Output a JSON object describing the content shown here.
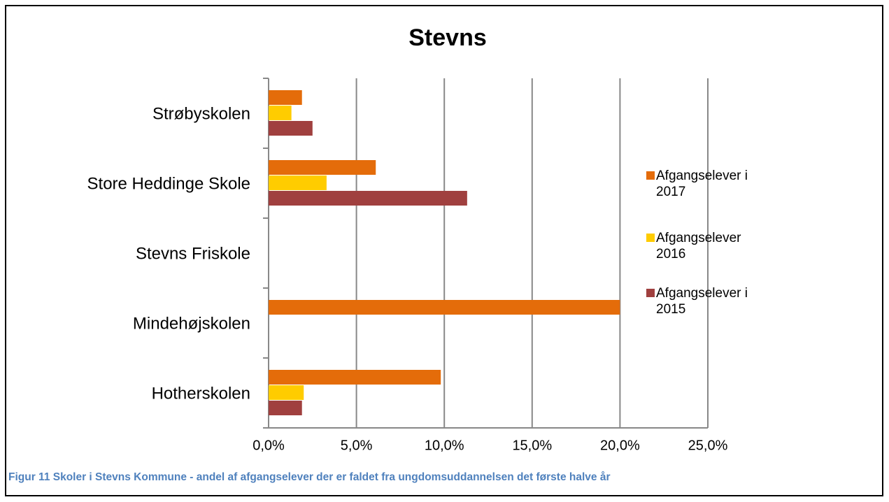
{
  "chart_data": {
    "type": "bar",
    "orientation": "horizontal",
    "title": "Stevns",
    "categories": [
      "Strøbyskolen",
      "Store Heddinge Skole",
      "Stevns Friskole",
      "Mindehøjskolen",
      "Hotherskolen"
    ],
    "series": [
      {
        "name": "Afgangselever i 2017",
        "color": "#e46c0a",
        "values": [
          1.9,
          6.1,
          null,
          20.0,
          9.8
        ]
      },
      {
        "name": "Afgangselever 2016",
        "color": "#ffcc00",
        "values": [
          1.3,
          3.3,
          null,
          null,
          2.0
        ]
      },
      {
        "name": "Afgangselever i 2015",
        "color": "#a0403f",
        "values": [
          2.5,
          11.3,
          null,
          null,
          1.9
        ]
      }
    ],
    "xlim": [
      0,
      25
    ],
    "xticks": [
      {
        "value": 0,
        "label": "0,0%"
      },
      {
        "value": 5,
        "label": "5,0%"
      },
      {
        "value": 10,
        "label": "10,0%"
      },
      {
        "value": 15,
        "label": "15,0%"
      },
      {
        "value": 20,
        "label": "20,0%"
      },
      {
        "value": 25,
        "label": "25,0%"
      }
    ],
    "grid": true,
    "legend": "right",
    "caption": "Figur 11 Skoler i Stevns Kommune - andel af afgangselever der er faldet fra ungdomsuddannelsen det første halve år"
  }
}
